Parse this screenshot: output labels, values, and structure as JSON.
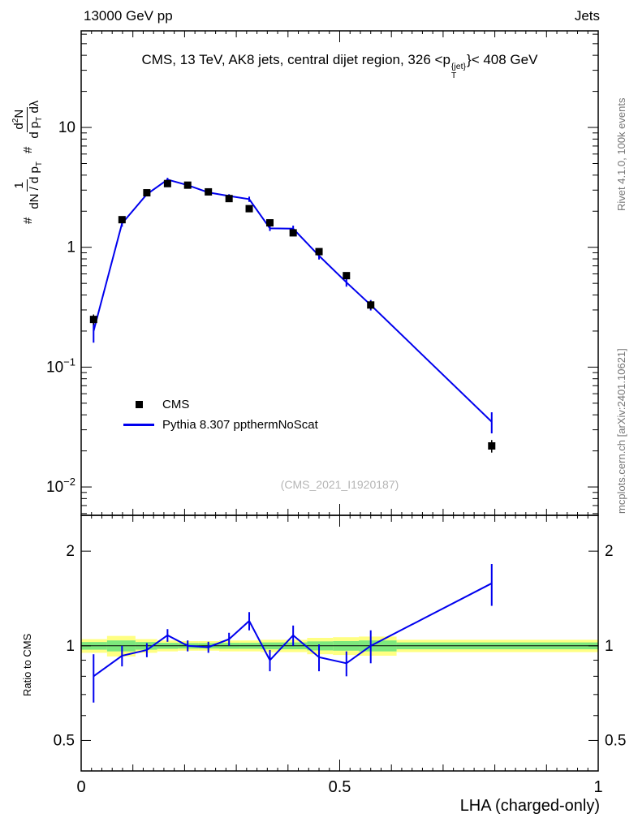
{
  "header": {
    "left": "13000 GeV pp",
    "right": "Jets"
  },
  "title": {
    "pre": "CMS, 13 TeV, AK8 jets, central dijet region, 326 <p",
    "sup": "{jet}",
    "sub": "T",
    "post": "}< 408 GeV"
  },
  "ylabel": {
    "h1": "#",
    "f1n": "1",
    "f1d": "dN / d p",
    "f1ds": "T",
    "h2": "#",
    "f2na": "d",
    "f2ns": "2",
    "f2nb": "N",
    "f2da": "d p",
    "f2ds": "T",
    "f2db": " dλ"
  },
  "xlabel": "LHA (charged-only)",
  "ratio_label": "Ratio to CMS",
  "watermark": "(CMS_2021_I1920187)",
  "side_notes": {
    "top": "Rivet 4.1.0, 100k events",
    "bottom": "mcplots.cern.ch [arXiv:2401.10621]"
  },
  "legend": {
    "cms": "CMS",
    "pythia": "Pythia 8.307 ppthermNoScat"
  },
  "colors": {
    "cms": "#000000",
    "pythia": "#0000ee",
    "band_yellow": "#ffff82",
    "band_green": "#7de87d",
    "ref_line": "#000000",
    "note_gray": "#757575",
    "watermark_gray": "#b5b5b5"
  },
  "chart_data": {
    "type": "line",
    "title": "CMS, 13 TeV, AK8 jets, central dijet region, 326 < pT{jet} < 408 GeV",
    "xlabel": "LHA (charged-only)",
    "ylabel": "# 1/(dN/dpT) # d2N/(dpT dlambda)",
    "ratio_ylabel": "Ratio to CMS",
    "grid": false,
    "x_range": [
      0,
      1
    ],
    "main_y_range": [
      0.0058,
      64
    ],
    "main_y_scale": "log",
    "ratio_y_range": [
      0.4,
      2.6
    ],
    "ratio_y_scale": "log",
    "x": [
      0.024,
      0.079,
      0.127,
      0.167,
      0.206,
      0.246,
      0.286,
      0.325,
      0.365,
      0.41,
      0.46,
      0.513,
      0.56,
      0.794
    ],
    "series": [
      {
        "name": "CMS",
        "marker": "square",
        "color": "#000000",
        "values": [
          0.25,
          1.7,
          2.85,
          3.4,
          3.3,
          2.9,
          2.55,
          2.1,
          1.6,
          1.32,
          0.92,
          0.58,
          0.33,
          0.022
        ],
        "err_rel": [
          0.1,
          0.05,
          0.04,
          0.035,
          0.03,
          0.03,
          0.035,
          0.04,
          0.04,
          0.05,
          0.05,
          0.06,
          0.08,
          0.12
        ]
      },
      {
        "name": "Pythia 8.307 ppthermNoScat",
        "marker": "line",
        "color": "#0000ee",
        "values": [
          0.2,
          1.58,
          2.77,
          3.67,
          3.3,
          2.87,
          2.68,
          2.52,
          1.44,
          1.43,
          0.85,
          0.51,
          0.33,
          0.035
        ],
        "err_rel": [
          0.2,
          0.06,
          0.04,
          0.035,
          0.03,
          0.03,
          0.035,
          0.05,
          0.05,
          0.06,
          0.07,
          0.08,
          0.1,
          0.2
        ]
      }
    ],
    "ratio": {
      "name": "Pythia/CMS",
      "values": [
        0.8,
        0.93,
        0.97,
        1.08,
        1.0,
        0.99,
        1.05,
        1.2,
        0.9,
        1.08,
        0.92,
        0.88,
        1.0,
        1.58
      ],
      "err": [
        0.14,
        0.07,
        0.05,
        0.05,
        0.04,
        0.04,
        0.05,
        0.08,
        0.07,
        0.08,
        0.09,
        0.08,
        0.12,
        0.24
      ]
    },
    "bands": [
      {
        "x0": 0.0,
        "x1": 0.05,
        "yellow": 0.05,
        "green": 0.028
      },
      {
        "x0": 0.05,
        "x1": 0.105,
        "yellow": 0.075,
        "green": 0.04
      },
      {
        "x0": 0.105,
        "x1": 0.147,
        "yellow": 0.05,
        "green": 0.028
      },
      {
        "x0": 0.147,
        "x1": 0.187,
        "yellow": 0.04,
        "green": 0.022
      },
      {
        "x0": 0.187,
        "x1": 0.227,
        "yellow": 0.035,
        "green": 0.02
      },
      {
        "x0": 0.227,
        "x1": 0.267,
        "yellow": 0.035,
        "green": 0.02
      },
      {
        "x0": 0.267,
        "x1": 0.307,
        "yellow": 0.04,
        "green": 0.022
      },
      {
        "x0": 0.307,
        "x1": 0.347,
        "yellow": 0.04,
        "green": 0.022
      },
      {
        "x0": 0.347,
        "x1": 0.387,
        "yellow": 0.045,
        "green": 0.025
      },
      {
        "x0": 0.387,
        "x1": 0.437,
        "yellow": 0.045,
        "green": 0.025
      },
      {
        "x0": 0.437,
        "x1": 0.487,
        "yellow": 0.06,
        "green": 0.033
      },
      {
        "x0": 0.487,
        "x1": 0.537,
        "yellow": 0.065,
        "green": 0.035
      },
      {
        "x0": 0.537,
        "x1": 0.61,
        "yellow": 0.07,
        "green": 0.04
      },
      {
        "x0": 0.61,
        "x1": 1.0,
        "yellow": 0.045,
        "green": 0.025
      }
    ],
    "x_ticks": [
      {
        "v": 0,
        "label": "0"
      },
      {
        "v": 0.5,
        "label": "0.5"
      },
      {
        "v": 1,
        "label": "1"
      }
    ],
    "y_ticks": [
      {
        "v": 10,
        "m": "10"
      },
      {
        "v": 1,
        "m": "1"
      },
      {
        "v": 0.1,
        "m": "10",
        "e": "−1"
      },
      {
        "v": 0.01,
        "m": "10",
        "e": "−2"
      }
    ],
    "ratio_ticks": [
      {
        "v": 0.5,
        "label": "0.5"
      },
      {
        "v": 1,
        "label": "1"
      },
      {
        "v": 2,
        "label": "2"
      }
    ],
    "legend_entries": [
      "CMS",
      "Pythia 8.307 ppthermNoScat"
    ],
    "legend_position": "center-left"
  }
}
